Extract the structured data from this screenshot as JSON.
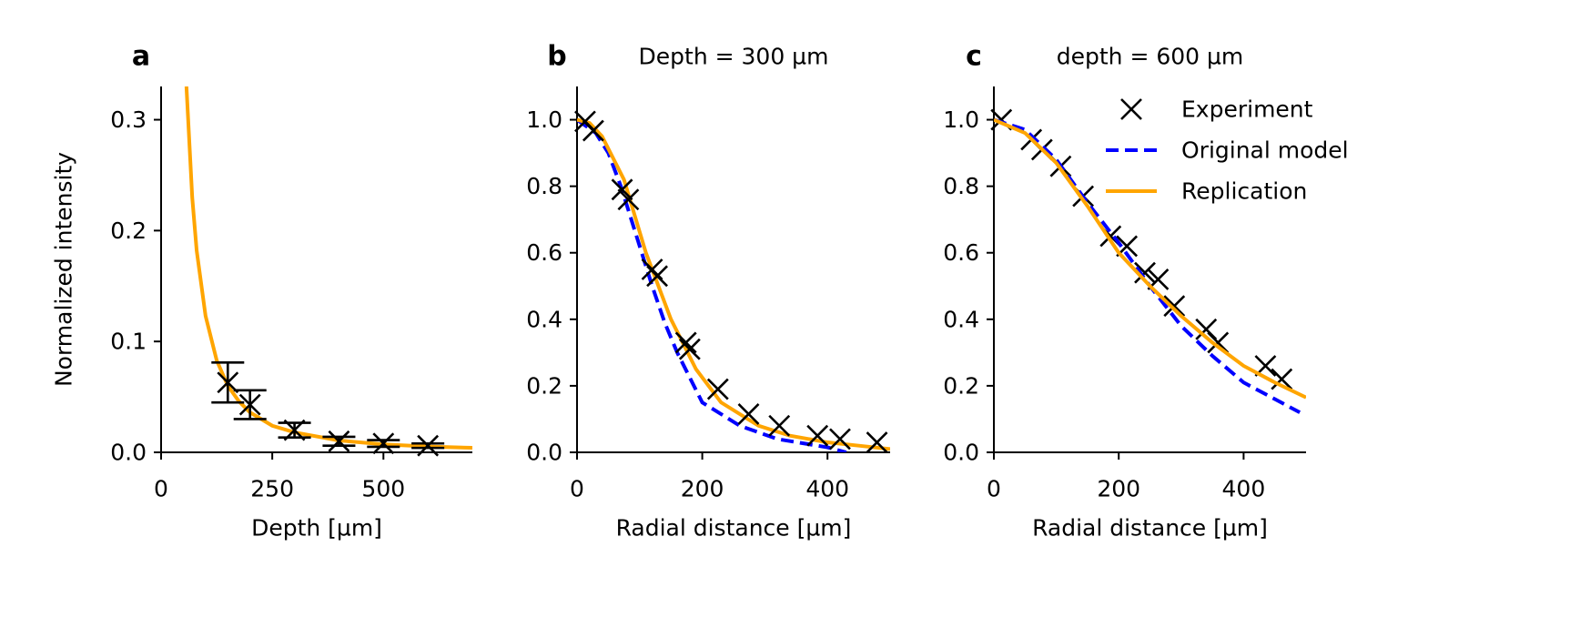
{
  "chart_data": [
    {
      "type": "line",
      "panel_label": "a",
      "xlabel": "Depth [µm]",
      "ylabel": "Normalized intensity",
      "xlim": [
        0,
        700
      ],
      "ylim": [
        0,
        0.33
      ],
      "xticks": [
        0,
        250,
        500
      ],
      "yticks": [
        {
          "value": 0,
          "label": "0.0"
        },
        0.1,
        0.2,
        0.3
      ],
      "series": [
        {
          "color": "#ffa500",
          "linestyle": "solid",
          "x": [
            57,
            70,
            80,
            100,
            125,
            150,
            175,
            200,
            250,
            300,
            400,
            500,
            600,
            700
          ],
          "values": [
            0.33,
            0.23,
            0.182,
            0.123,
            0.083,
            0.06,
            0.046,
            0.036,
            0.024,
            0.018,
            0.0107,
            0.0072,
            0.0052,
            0.0041
          ]
        },
        {
          "color": "#000000",
          "marker": "x",
          "x": [
            150,
            200,
            300,
            400,
            500,
            600
          ],
          "values": [
            0.063,
            0.043,
            0.02,
            0.01,
            0.008,
            0.006
          ],
          "errors": [
            0.018,
            0.013,
            0.0066,
            0.004,
            0.003,
            0.002
          ]
        }
      ]
    },
    {
      "type": "line",
      "panel_label": "b",
      "title": "Depth = 300 µm",
      "xlabel": "Radial distance [µm]",
      "xlim": [
        0,
        500
      ],
      "ylim": [
        0,
        1.1
      ],
      "xticks": [
        0,
        200,
        400
      ],
      "yticks": [
        {
          "value": 0,
          "label": "0.0"
        },
        {
          "value": 0.2,
          "label": "0.2"
        },
        {
          "value": 0.4,
          "label": "0.4"
        },
        {
          "value": 0.6,
          "label": "0.6"
        },
        {
          "value": 0.8,
          "label": "0.8"
        },
        {
          "value": 1,
          "label": "1.0"
        }
      ],
      "series": [
        {
          "color": "#0000ff",
          "linestyle": "dashed",
          "x": [
            0,
            30,
            50,
            70,
            90,
            120,
            140,
            160,
            200,
            260,
            320,
            400,
            430
          ],
          "values": [
            1.0,
            0.96,
            0.9,
            0.8,
            0.68,
            0.5,
            0.39,
            0.3,
            0.15,
            0.08,
            0.04,
            0.015,
            0.0
          ]
        },
        {
          "color": "#ffa500",
          "linestyle": "solid",
          "x": [
            0,
            20,
            40,
            75,
            110,
            150,
            190,
            230,
            290,
            340,
            400,
            450,
            500
          ],
          "values": [
            1.0,
            0.99,
            0.95,
            0.82,
            0.6,
            0.4,
            0.25,
            0.15,
            0.08,
            0.05,
            0.03,
            0.02,
            0.01
          ]
        },
        {
          "color": "#000000",
          "marker": "x",
          "x": [
            13,
            26,
            72,
            82,
            120,
            128,
            174,
            180,
            225,
            274,
            323,
            384,
            420,
            479
          ],
          "values": [
            0.995,
            0.967,
            0.79,
            0.76,
            0.55,
            0.53,
            0.33,
            0.31,
            0.19,
            0.115,
            0.08,
            0.05,
            0.04,
            0.03
          ]
        }
      ]
    },
    {
      "type": "line",
      "panel_label": "c",
      "title": "depth = 600 µm",
      "xlabel": "Radial distance [µm]",
      "xlim": [
        0,
        500
      ],
      "ylim": [
        0,
        1.1
      ],
      "xticks": [
        0,
        200,
        400
      ],
      "yticks": [
        {
          "value": 0,
          "label": "0.0"
        },
        {
          "value": 0.2,
          "label": "0.2"
        },
        {
          "value": 0.4,
          "label": "0.4"
        },
        {
          "value": 0.6,
          "label": "0.6"
        },
        {
          "value": 0.8,
          "label": "0.8"
        },
        {
          "value": 1,
          "label": "1.0"
        }
      ],
      "legend": "upper right",
      "series": [
        {
          "name": "Experiment",
          "color": "#000000",
          "marker": "x",
          "x": [
            12,
            60,
            77,
            107,
            143,
            187,
            213,
            242,
            263,
            289,
            340,
            359,
            435,
            461
          ],
          "values": [
            1.0,
            0.94,
            0.91,
            0.86,
            0.77,
            0.65,
            0.62,
            0.54,
            0.52,
            0.44,
            0.37,
            0.33,
            0.26,
            0.22
          ]
        },
        {
          "name": "Original model",
          "color": "#0000ff",
          "linestyle": "dashed",
          "x": [
            0,
            50,
            100,
            150,
            200,
            250,
            300,
            350,
            400,
            450,
            490
          ],
          "values": [
            1.0,
            0.97,
            0.88,
            0.75,
            0.63,
            0.5,
            0.38,
            0.29,
            0.21,
            0.16,
            0.12
          ]
        },
        {
          "name": "Replication",
          "color": "#ffa500",
          "linestyle": "solid",
          "x": [
            0,
            50,
            100,
            150,
            200,
            250,
            300,
            350,
            400,
            450,
            500
          ],
          "values": [
            1.0,
            0.96,
            0.87,
            0.74,
            0.6,
            0.5,
            0.41,
            0.33,
            0.26,
            0.21,
            0.165
          ]
        }
      ]
    }
  ]
}
